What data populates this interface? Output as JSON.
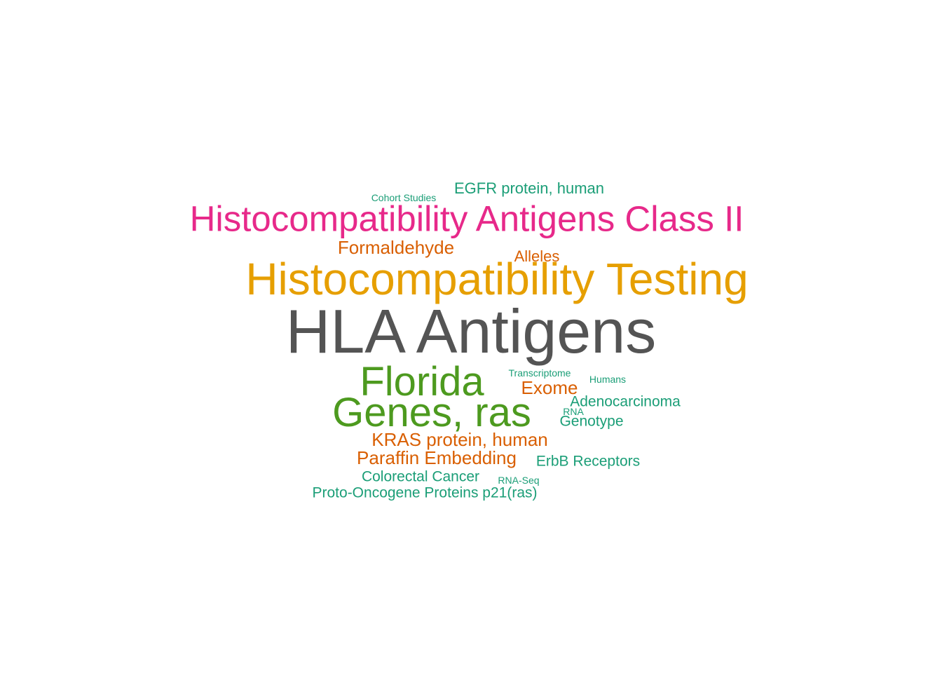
{
  "palette": {
    "gray": "#545454",
    "orange": "#e69f00",
    "pink": "#e7298a",
    "green": "#4d9a1f",
    "rust": "#d95f02",
    "teal": "#1b9e77"
  },
  "words": [
    {
      "id": "hla-antigens",
      "text": "HLA Antigens",
      "color": "gray"
    },
    {
      "id": "histocompatibility-testing",
      "text": "Histocompatibility Testing",
      "color": "orange"
    },
    {
      "id": "histocompatibility-antigens-class-ii",
      "text": "Histocompatibility Antigens Class II",
      "color": "pink"
    },
    {
      "id": "florida",
      "text": "Florida",
      "color": "green"
    },
    {
      "id": "genes-ras",
      "text": "Genes, ras",
      "color": "green"
    },
    {
      "id": "formaldehyde",
      "text": "Formaldehyde",
      "color": "rust"
    },
    {
      "id": "alleles",
      "text": "Alleles",
      "color": "rust"
    },
    {
      "id": "exome",
      "text": "Exome",
      "color": "rust"
    },
    {
      "id": "kras-protein-human",
      "text": "KRAS protein, human",
      "color": "rust"
    },
    {
      "id": "paraffin-embedding",
      "text": "Paraffin Embedding",
      "color": "rust"
    },
    {
      "id": "egfr-protein-human",
      "text": "EGFR protein, human",
      "color": "teal"
    },
    {
      "id": "cohort-studies",
      "text": "Cohort Studies",
      "color": "teal"
    },
    {
      "id": "transcriptome",
      "text": "Transcriptome",
      "color": "teal"
    },
    {
      "id": "humans",
      "text": "Humans",
      "color": "teal"
    },
    {
      "id": "adenocarcinoma",
      "text": "Adenocarcinoma",
      "color": "teal"
    },
    {
      "id": "rna",
      "text": "RNA",
      "color": "teal"
    },
    {
      "id": "genotype",
      "text": "Genotype",
      "color": "teal"
    },
    {
      "id": "erbb-receptors",
      "text": "ErbB Receptors",
      "color": "teal"
    },
    {
      "id": "colorectal-cancer",
      "text": "Colorectal Cancer",
      "color": "teal"
    },
    {
      "id": "rna-seq",
      "text": "RNA-Seq",
      "color": "teal"
    },
    {
      "id": "proto-oncogene-proteins-p21-ras",
      "text": "Proto-Oncogene Proteins p21(ras)",
      "color": "teal"
    }
  ]
}
